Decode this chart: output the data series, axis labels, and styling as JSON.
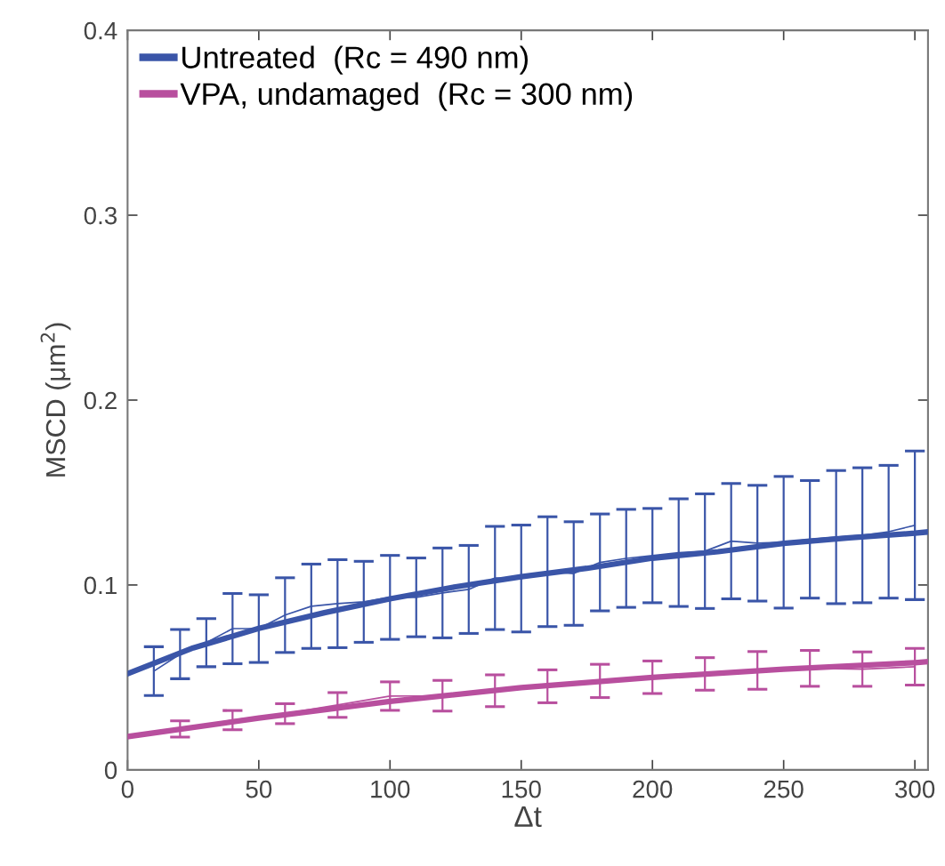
{
  "chart_data": {
    "type": "line",
    "xlabel": "Δt",
    "ylabel": "MSCD (μm$^{2}$)",
    "xlim": [
      0,
      305
    ],
    "ylim": [
      0,
      0.4
    ],
    "xticks": [
      0,
      50,
      100,
      150,
      200,
      250,
      300
    ],
    "yticks": [
      0,
      0.1,
      0.2,
      0.3,
      0.4
    ],
    "grid": false,
    "legend": "top left",
    "marker": "none",
    "line_style": "solid",
    "series": [
      {
        "color": "#3a55a8",
        "x": [
          10,
          20,
          30,
          40,
          50,
          60,
          70,
          80,
          90,
          100,
          110,
          120,
          130,
          140,
          150,
          160,
          170,
          180,
          190,
          200,
          210,
          220,
          230,
          240,
          250,
          260,
          270,
          280,
          290,
          300
        ],
        "values": [
          0.0534,
          0.0626,
          0.0688,
          0.0764,
          0.0764,
          0.0837,
          0.0885,
          0.0899,
          0.0909,
          0.0933,
          0.0933,
          0.0957,
          0.0976,
          0.1038,
          0.1035,
          0.1072,
          0.1062,
          0.1122,
          0.1144,
          0.1159,
          0.1175,
          0.1183,
          0.1237,
          0.1226,
          0.1231,
          0.1247,
          0.1259,
          0.1269,
          0.1288,
          0.1323
        ],
        "errors": [
          0.0132,
          0.0133,
          0.013,
          0.019,
          0.0183,
          0.0202,
          0.0228,
          0.0238,
          0.0219,
          0.0227,
          0.0213,
          0.0243,
          0.0238,
          0.0279,
          0.0289,
          0.0297,
          0.028,
          0.0262,
          0.0265,
          0.0255,
          0.0291,
          0.031,
          0.0312,
          0.0313,
          0.0356,
          0.0318,
          0.036,
          0.0365,
          0.0359,
          0.0402
        ]
      },
      {
        "name": "Untreated  (Rc = 490 nm)",
        "color": "#3a55a8",
        "x": [
          0,
          25,
          50,
          75,
          100,
          125,
          150,
          175,
          200,
          225,
          250,
          275,
          300,
          305
        ],
        "values": [
          0.052,
          0.066,
          0.0765,
          0.085,
          0.0925,
          0.099,
          0.1045,
          0.109,
          0.1145,
          0.118,
          0.1225,
          0.1255,
          0.128,
          0.1287
        ]
      },
      {
        "color": "#b84f9e",
        "x": [
          20,
          40,
          60,
          80,
          100,
          120,
          140,
          160,
          180,
          200,
          220,
          240,
          260,
          280,
          300
        ],
        "values": [
          0.0221,
          0.0269,
          0.0304,
          0.0351,
          0.0399,
          0.0401,
          0.0428,
          0.0452,
          0.0481,
          0.0501,
          0.0519,
          0.0538,
          0.0549,
          0.0545,
          0.0558
        ],
        "errors": [
          0.0044,
          0.0052,
          0.0054,
          0.0067,
          0.0077,
          0.0083,
          0.0086,
          0.0089,
          0.009,
          0.0088,
          0.0088,
          0.0102,
          0.0097,
          0.0093,
          0.0099
        ]
      },
      {
        "name": "VPA, undamaged  (Rc = 300 nm)",
        "color": "#b84f9e",
        "x": [
          0,
          50,
          100,
          150,
          200,
          250,
          300,
          305
        ],
        "values": [
          0.018,
          0.028,
          0.037,
          0.0445,
          0.05,
          0.0545,
          0.058,
          0.0585
        ]
      }
    ]
  }
}
